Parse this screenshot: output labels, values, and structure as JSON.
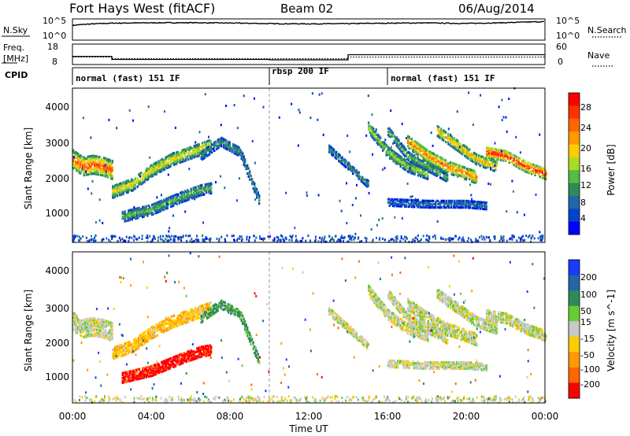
{
  "header": {
    "title": "Fort Hays West (fitACF)",
    "beam": "Beam 02",
    "date": "06/Aug/2014"
  },
  "noise_panel": {
    "left_label": "N.Sky",
    "right_label": "N.Search",
    "left_ticks": [
      "10^5",
      "10^0"
    ],
    "right_ticks": [
      "10^5",
      "10^0"
    ]
  },
  "freq_panel": {
    "left_label_1": "Freq.",
    "left_label_2": "[MHz]",
    "right_label": "Nave",
    "left_ticks": [
      "18",
      "8"
    ],
    "right_ticks": [
      "60",
      "0"
    ]
  },
  "cpid_panel": {
    "label": "CPID",
    "segments": [
      {
        "label": "normal (fast) 151 IF",
        "start_h": 0,
        "end_h": 10
      },
      {
        "label": "rbsp 200 IF",
        "start_h": 10,
        "end_h": 16
      },
      {
        "label": "normal (fast) 151 IF",
        "start_h": 16,
        "end_h": 24
      }
    ]
  },
  "x_axis": {
    "ticks": [
      "00:00",
      "04:00",
      "08:00",
      "12:00",
      "16:00",
      "20:00",
      "00:00"
    ],
    "label": "Time UT"
  },
  "power_panel": {
    "ylabel": "Slant Range [km]",
    "yticks": [
      "1000",
      "2000",
      "3000",
      "4000"
    ],
    "colorbar_label": "Power [dB]",
    "colorbar_ticks": [
      "4",
      "8",
      "12",
      "16",
      "20",
      "24",
      "28"
    ],
    "colors": [
      "#0000ff",
      "#0044cc",
      "#2266aa",
      "#2e8b57",
      "#55bb44",
      "#aadd22",
      "#ffcc00",
      "#ff9900",
      "#ff6600",
      "#ff3300",
      "#ff0000"
    ]
  },
  "velocity_panel": {
    "ylabel": "Slant Range [km]",
    "yticks": [
      "1000",
      "2000",
      "3000",
      "4000"
    ],
    "colorbar_label": "Velocity [m s^-1]",
    "colorbar_ticks": [
      "200",
      "100",
      "50",
      "15",
      "-15",
      "-50",
      "-100",
      "-200"
    ],
    "colors": [
      "#1a3aff",
      "#2266aa",
      "#2e8b57",
      "#66cc33",
      "#c8c8c8",
      "#ffcc00",
      "#ff9900",
      "#ff6600",
      "#ff0000"
    ]
  },
  "chart_data": [
    {
      "type": "line",
      "title": "Fort Hays West (fitACF)",
      "series": [
        {
          "name": "N.Sky",
          "x": [
            0,
            2,
            4,
            6,
            8,
            10,
            12,
            14,
            16,
            18,
            20,
            22,
            24
          ],
          "values": [
            3000,
            12000,
            15000,
            16000,
            13000,
            9000,
            8000,
            9000,
            12000,
            14000,
            10000,
            16000,
            30000
          ]
        }
      ],
      "xlim": [
        0,
        24
      ],
      "ylim": [
        1,
        100000
      ],
      "yscale": "log"
    },
    {
      "type": "line",
      "series": [
        {
          "name": "Freq.",
          "x": [
            0,
            2,
            2,
            10,
            10,
            14,
            14,
            24
          ],
          "values": [
            12,
            12,
            10.5,
            10.5,
            10.3,
            10.3,
            12.8,
            12.8
          ]
        },
        {
          "name": "Nave",
          "x": [
            0,
            2,
            2,
            14,
            14,
            24
          ],
          "values": [
            22,
            22,
            17,
            17,
            22,
            22
          ]
        }
      ],
      "xlim": [
        0,
        24
      ],
      "ylim": [
        8,
        18
      ],
      "y2lim": [
        0,
        60
      ]
    },
    {
      "type": "heatmap",
      "title": "Power [dB]",
      "xlabel": "Time UT",
      "ylabel": "Slant Range [km]",
      "xlim": [
        0,
        24
      ],
      "ylim": [
        180,
        4500
      ],
      "clim": [
        0,
        30
      ],
      "bands": [
        {
          "t": [
            0,
            0.5,
            1,
            1.5,
            2
          ],
          "r": [
            2500,
            2300,
            2350,
            2300,
            2200
          ],
          "width": 500,
          "power": 20
        },
        {
          "t": [
            2,
            3,
            4,
            5,
            6,
            7
          ],
          "r": [
            1600,
            1800,
            2200,
            2500,
            2700,
            2900
          ],
          "width": 350,
          "power": 14
        },
        {
          "t": [
            2.5,
            4,
            5.5,
            6.5,
            7
          ],
          "r": [
            900,
            1100,
            1450,
            1650,
            1700
          ],
          "width": 300,
          "power": 10
        },
        {
          "t": [
            6.5,
            7.5,
            8.5,
            9.5
          ],
          "r": [
            2600,
            3000,
            2700,
            1300
          ],
          "width": 250,
          "power": 8
        },
        {
          "t": [
            13,
            14,
            15
          ],
          "r": [
            2800,
            2300,
            1800
          ],
          "width": 200,
          "power": 8
        },
        {
          "t": [
            15,
            16,
            17,
            18
          ],
          "r": [
            3400,
            2700,
            2300,
            2100
          ],
          "width": 300,
          "power": 12
        },
        {
          "t": [
            16,
            17,
            18,
            19
          ],
          "r": [
            3300,
            2600,
            2300,
            2000
          ],
          "width": 250,
          "power": 10
        },
        {
          "t": [
            17,
            18,
            19,
            20,
            20.5
          ],
          "r": [
            3000,
            2600,
            2300,
            2100,
            2000
          ],
          "width": 350,
          "power": 18
        },
        {
          "t": [
            18.5,
            19.5,
            20.5,
            21.5
          ],
          "r": [
            3300,
            2900,
            2500,
            2300
          ],
          "width": 300,
          "power": 16
        },
        {
          "t": [
            21,
            22,
            23,
            24
          ],
          "r": [
            2700,
            2600,
            2300,
            2100
          ],
          "width": 300,
          "power": 22
        },
        {
          "t": [
            16,
            18,
            20,
            21
          ],
          "r": [
            1300,
            1250,
            1250,
            1200
          ],
          "width": 200,
          "power": 6
        }
      ]
    },
    {
      "type": "heatmap",
      "title": "Velocity [m s^-1]",
      "xlabel": "Time UT",
      "ylabel": "Slant Range [km]",
      "xlim": [
        0,
        24
      ],
      "ylim": [
        180,
        4500
      ],
      "clim": [
        -200,
        200
      ],
      "bands": [
        {
          "t": [
            0,
            0.5,
            1,
            1.5,
            2
          ],
          "r": [
            2500,
            2300,
            2350,
            2300,
            2200
          ],
          "width": 500,
          "velocity": 0
        },
        {
          "t": [
            2,
            3,
            4,
            5,
            6,
            7
          ],
          "r": [
            1600,
            1800,
            2200,
            2500,
            2700,
            2900
          ],
          "width": 350,
          "velocity": -40
        },
        {
          "t": [
            2.5,
            4,
            5.5,
            6.5,
            7
          ],
          "r": [
            900,
            1100,
            1450,
            1650,
            1700
          ],
          "width": 300,
          "velocity": -180
        },
        {
          "t": [
            6.5,
            7.5,
            8.5,
            9.5
          ],
          "r": [
            2600,
            3000,
            2700,
            1300
          ],
          "width": 250,
          "velocity": 40
        },
        {
          "t": [
            13,
            14,
            15
          ],
          "r": [
            2800,
            2300,
            1800
          ],
          "width": 200,
          "velocity": 0
        },
        {
          "t": [
            15,
            16,
            17,
            18
          ],
          "r": [
            3400,
            2700,
            2300,
            2100
          ],
          "width": 300,
          "velocity": 0
        },
        {
          "t": [
            16,
            17,
            18,
            19
          ],
          "r": [
            3300,
            2600,
            2300,
            2000
          ],
          "width": 250,
          "velocity": 0
        },
        {
          "t": [
            17,
            18,
            19,
            20,
            20.5
          ],
          "r": [
            3000,
            2600,
            2300,
            2100,
            2000
          ],
          "width": 350,
          "velocity": 0
        },
        {
          "t": [
            18.5,
            19.5,
            20.5,
            21.5
          ],
          "r": [
            3300,
            2900,
            2500,
            2300
          ],
          "width": 300,
          "velocity": 0
        },
        {
          "t": [
            21,
            22,
            23,
            24
          ],
          "r": [
            2700,
            2600,
            2300,
            2100
          ],
          "width": 300,
          "velocity": 0
        },
        {
          "t": [
            16,
            18,
            20,
            21
          ],
          "r": [
            1300,
            1250,
            1250,
            1200
          ],
          "width": 200,
          "velocity": 0
        }
      ]
    }
  ]
}
